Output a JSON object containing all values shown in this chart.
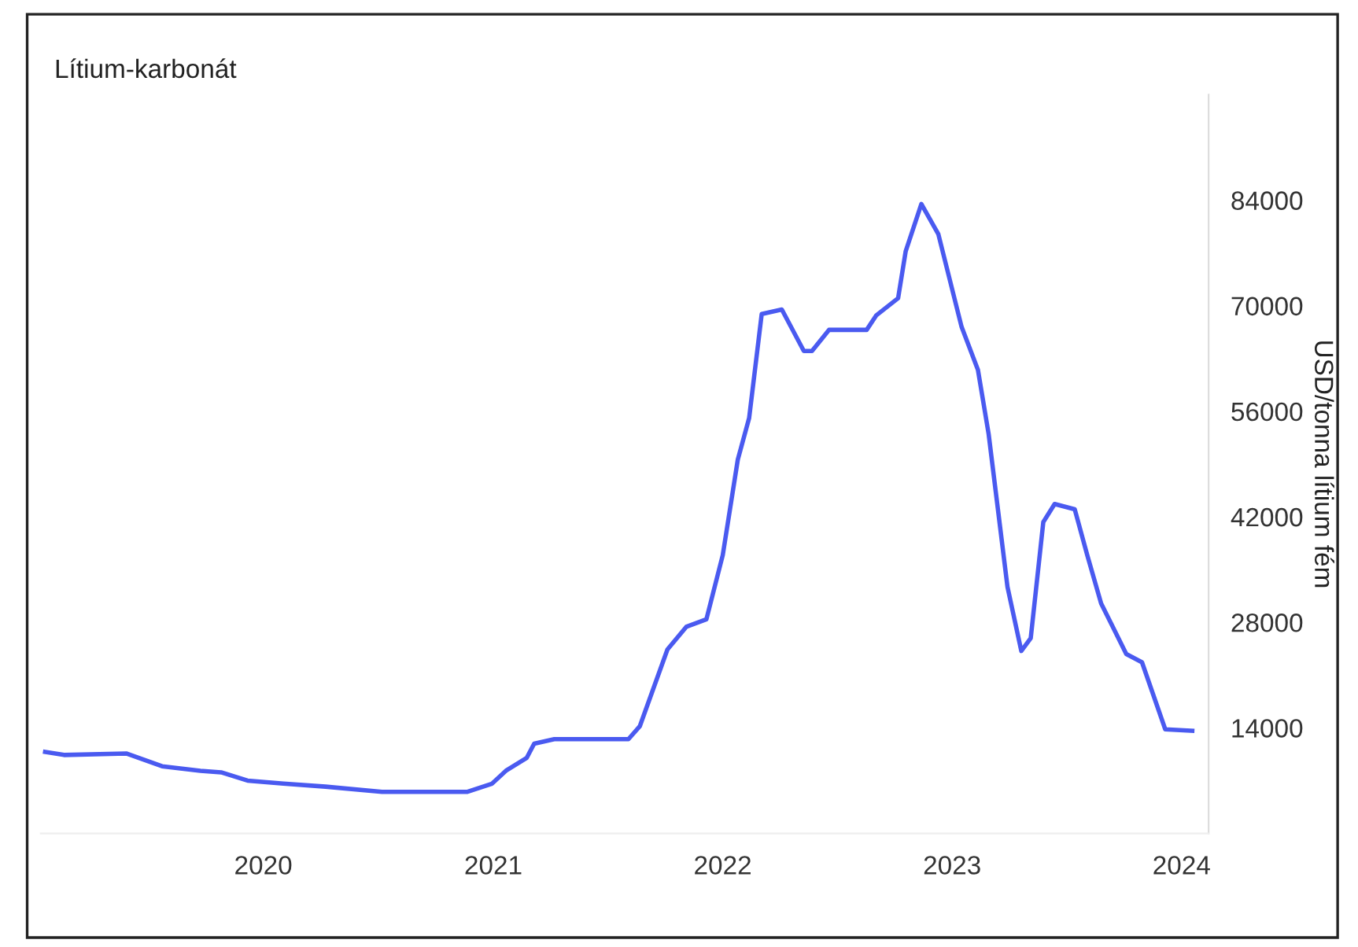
{
  "chart_data": {
    "type": "line",
    "title": "Lítium-karbonát",
    "ylabel": "USD/tonna lítium fém",
    "x": [
      "2019-01-19",
      "2019-02-18",
      "2019-05-28",
      "2019-07-24",
      "2019-09-23",
      "2019-10-26",
      "2019-12-07",
      "2020-02-02",
      "2020-04-09",
      "2020-07-08",
      "2020-11-20",
      "2020-12-30",
      "2021-01-21",
      "2021-02-23",
      "2021-03-07",
      "2021-04-08",
      "2021-08-04",
      "2021-08-22",
      "2021-10-05",
      "2021-11-04",
      "2021-12-06",
      "2022-01-01",
      "2022-01-25",
      "2022-02-12",
      "2022-03-04",
      "2022-04-05",
      "2022-05-10",
      "2022-05-23",
      "2022-06-19",
      "2022-08-18",
      "2022-09-02",
      "2022-10-07",
      "2022-10-19",
      "2022-11-13",
      "2022-12-10",
      "2023-01-16",
      "2023-02-11",
      "2023-02-28",
      "2023-03-30",
      "2023-04-21",
      "2023-05-06",
      "2023-05-26",
      "2023-06-13",
      "2023-07-15",
      "2023-08-04",
      "2023-08-26",
      "2023-09-10",
      "2023-10-05",
      "2023-10-30",
      "2023-12-06",
      "2024-01-18"
    ],
    "series": [
      {
        "color": "#4a5af0",
        "values": [
          10800,
          10400,
          10600,
          8900,
          8300,
          8100,
          7000,
          6600,
          6200,
          5500,
          5500,
          6600,
          8300,
          10000,
          11900,
          12500,
          12500,
          14200,
          24400,
          27400,
          28400,
          36900,
          49600,
          55100,
          68900,
          69500,
          64000,
          64000,
          66800,
          66800,
          68700,
          71000,
          77200,
          83500,
          79500,
          67200,
          61500,
          53000,
          32700,
          24200,
          25900,
          41300,
          43700,
          43000,
          36900,
          30500,
          28000,
          23800,
          22700,
          13800,
          13600
        ]
      }
    ],
    "xlim": [
      "2019-01-12",
      "2024-02-13"
    ],
    "xticks": [
      {
        "value": "2020-01-01",
        "label": "2020"
      },
      {
        "value": "2021-01-01",
        "label": "2021"
      },
      {
        "value": "2022-01-01",
        "label": "2022"
      },
      {
        "value": "2023-01-01",
        "label": "2023"
      },
      {
        "value": "2024-01-01",
        "label": "2024"
      }
    ],
    "ylim": [
      0,
      98000
    ],
    "yticks": [
      14000,
      28000,
      42000,
      56000,
      70000,
      84000
    ],
    "grid": false,
    "legend": false
  }
}
